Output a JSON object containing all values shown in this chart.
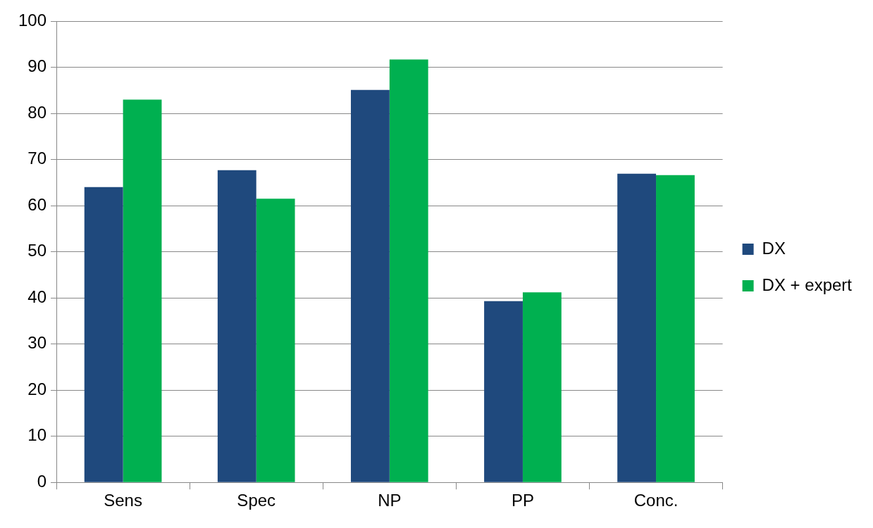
{
  "chart_data": {
    "type": "bar",
    "categories": [
      "Sens",
      "Spec",
      "NP",
      "PP",
      "Conc."
    ],
    "series": [
      {
        "name": "DX",
        "color": "#1f497d",
        "values": [
          64,
          67.7,
          85.1,
          39.3,
          66.9
        ]
      },
      {
        "name": "DX + expert",
        "color": "#00b050",
        "values": [
          83,
          61.5,
          91.7,
          41.2,
          66.6
        ]
      }
    ],
    "ylim": [
      0,
      100
    ],
    "yticks": [
      0,
      10,
      20,
      30,
      40,
      50,
      60,
      70,
      80,
      90,
      100
    ],
    "grid": "y",
    "legend": "right"
  }
}
